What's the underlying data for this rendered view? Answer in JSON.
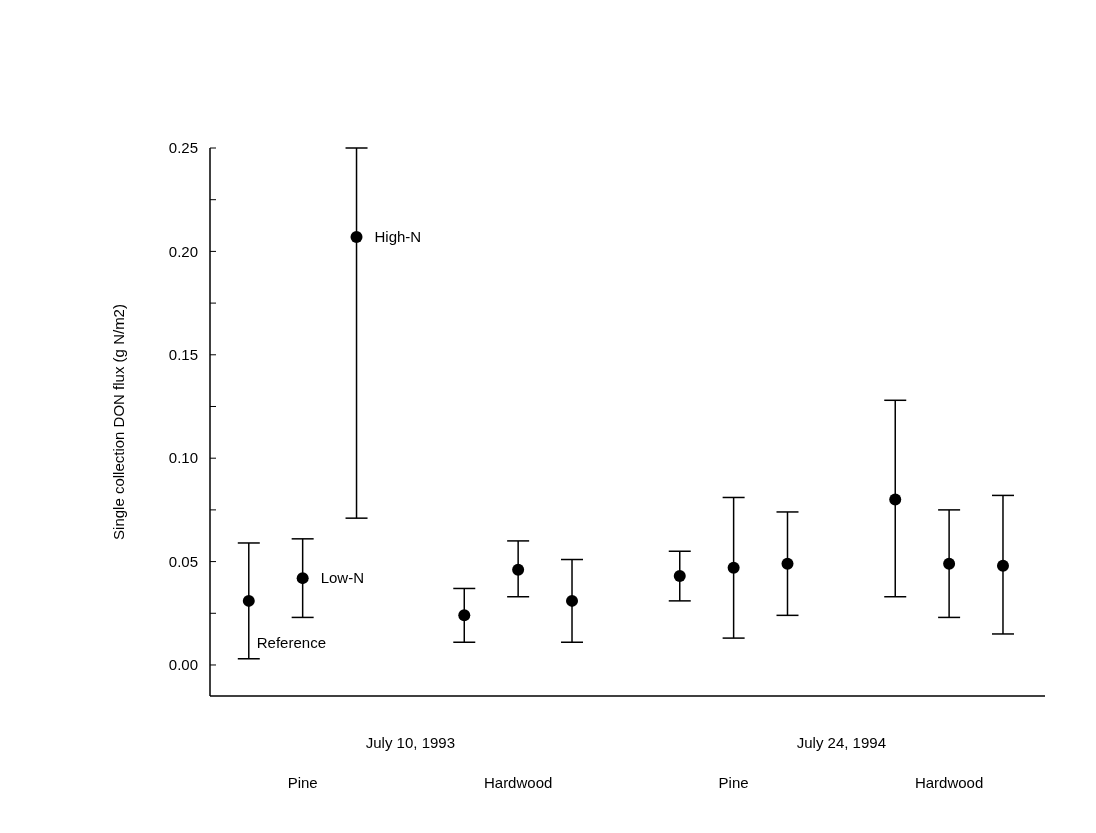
{
  "chart_data": {
    "type": "scatter",
    "ylabel": "Single collection DON flux (g N/m2)",
    "categories": [
      null,
      null,
      null,
      null,
      null,
      null,
      null,
      null,
      null,
      null,
      null,
      null,
      null,
      null,
      null
    ],
    "series": [
      {
        "color": "#000000",
        "values": [
          0.031,
          0.042,
          0.207,
          null,
          0.024,
          0.046,
          0.031,
          null,
          0.043,
          0.047,
          0.049,
          null,
          0.08,
          0.049,
          0.048
        ],
        "errors": [
          [
            0.003,
            0.059
          ],
          [
            0.023,
            0.061
          ],
          [
            0.071,
            0.25
          ],
          null,
          [
            0.011,
            0.037
          ],
          [
            0.033,
            0.06
          ],
          [
            0.011,
            0.051
          ],
          null,
          [
            0.031,
            0.055
          ],
          [
            0.013,
            0.081
          ],
          [
            0.024,
            0.074
          ],
          null,
          [
            0.033,
            0.128
          ],
          [
            0.023,
            0.075
          ],
          [
            0.015,
            0.082
          ]
        ]
      }
    ],
    "ylim": [
      -0.015,
      0.25
    ],
    "yticks": [
      {
        "value": 0,
        "label": "0.00"
      },
      {
        "value": 0.025,
        "label": null
      },
      {
        "value": 0.05,
        "label": "0.05"
      },
      {
        "value": 0.075,
        "label": null
      },
      {
        "value": 0.1,
        "label": "0.10"
      },
      {
        "value": 0.125,
        "label": null
      },
      {
        "value": 0.15,
        "label": "0.15"
      },
      {
        "value": 0.175,
        "label": null
      },
      {
        "value": 0.2,
        "label": "0.20"
      },
      {
        "value": 0.225,
        "label": null
      },
      {
        "value": 0.25,
        "label": "0.25"
      }
    ],
    "marker": "circle",
    "annotations": [
      "Reference",
      "Low-N",
      "High-N",
      "July 10, 1993",
      "July 24, 1994",
      "Pine",
      "Hardwood",
      "Pine",
      "Hardwood"
    ]
  }
}
